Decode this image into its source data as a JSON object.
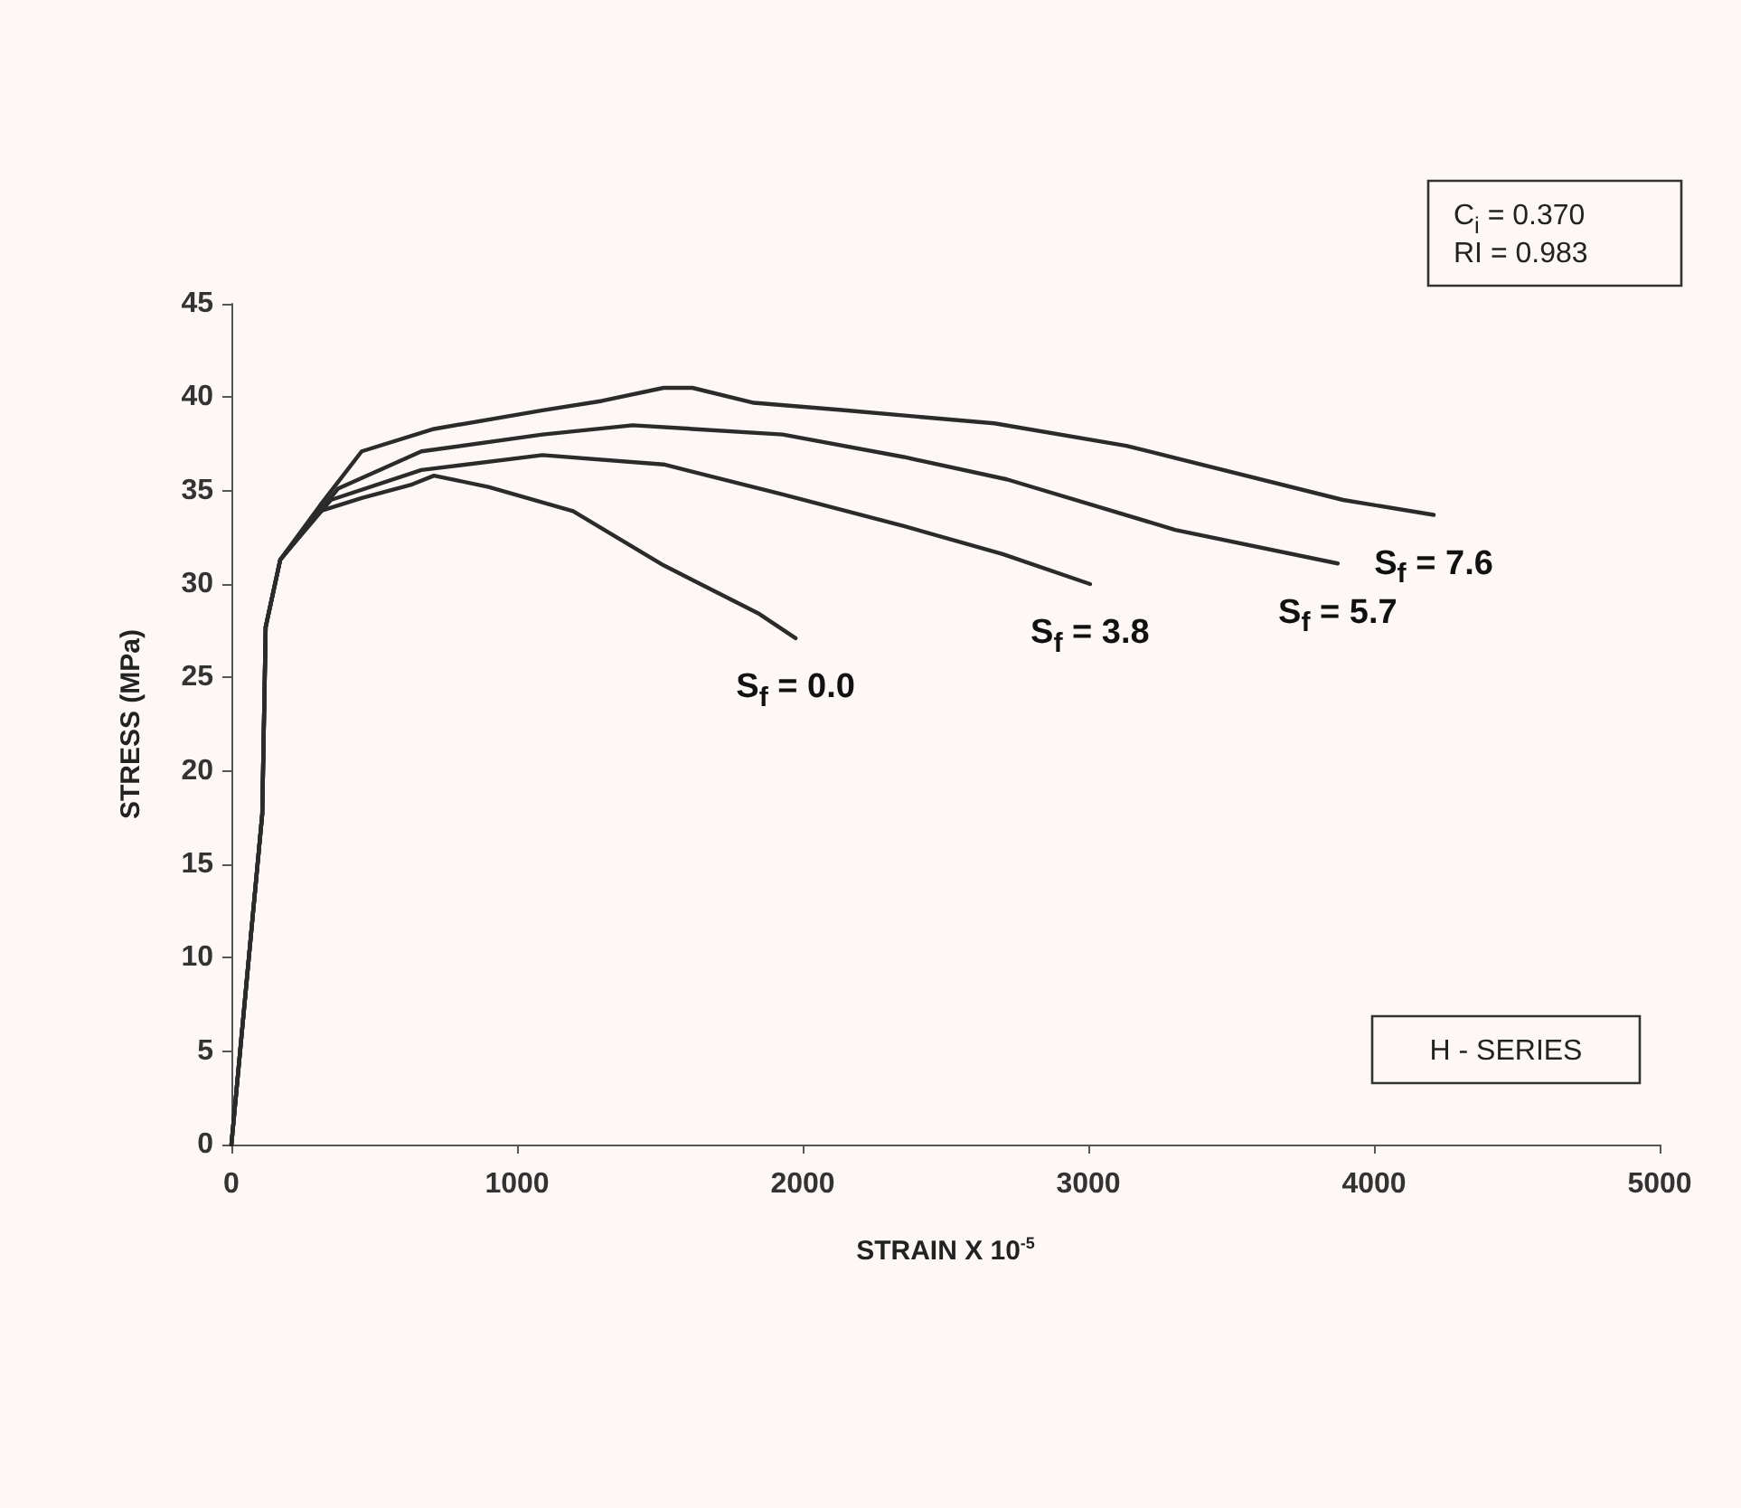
{
  "chart_data": {
    "type": "line",
    "xlabel": "STRAIN X 10$^{-5}$",
    "ylabel": "STRESS (MPa)",
    "xlim": [
      0,
      5000
    ],
    "xticks": [
      0,
      1000,
      2000,
      3000,
      4000,
      5000
    ],
    "ylim": [
      0,
      45
    ],
    "yticks": [
      0,
      5,
      10,
      15,
      20,
      25,
      30,
      35,
      40,
      45
    ],
    "grid": false,
    "marker": "none",
    "line_style": "solid",
    "series": [
      {
        "color": "#2b2b2b",
        "x": [
          0,
          108,
          120,
          171,
          310,
          456,
          627,
          709,
          900,
          1196,
          1513,
          1848,
          1975
        ],
        "values": [
          0,
          17.7,
          27.7,
          31.3,
          33.9,
          34.6,
          35.3,
          35.8,
          35.2,
          33.9,
          31,
          28.4,
          27.1
        ]
      },
      {
        "color": "#2b2b2b",
        "x": [
          0,
          108,
          120,
          171,
          348,
          665,
          1089,
          1513,
          1930,
          2354,
          2700,
          3006
        ],
        "values": [
          0,
          17.7,
          27.7,
          31.3,
          34.5,
          36.1,
          36.9,
          36.4,
          34.8,
          33.1,
          31.6,
          30.0
        ]
      },
      {
        "color": "#2b2b2b",
        "x": [
          0,
          108,
          120,
          171,
          373,
          665,
          1089,
          1405,
          1930,
          2354,
          2715,
          3304,
          3873
        ],
        "values": [
          0,
          17.7,
          27.7,
          31.3,
          35.1,
          37.1,
          38.0,
          38.5,
          38.0,
          36.8,
          35.6,
          32.9,
          31.1
        ]
      },
      {
        "color": "#2b2b2b",
        "x": [
          0,
          108,
          120,
          171,
          310,
          456,
          709,
          1089,
          1297,
          1513,
          1614,
          1829,
          2146,
          2671,
          3133,
          3892,
          4209
        ],
        "values": [
          0,
          17.7,
          27.7,
          31.3,
          34.2,
          37.1,
          38.3,
          39.3,
          39.8,
          40.5,
          40.5,
          39.7,
          39.3,
          38.6,
          37.4,
          34.5,
          33.7
        ]
      }
    ],
    "annotations": [
      {
        "text": "S$_{f}$ = 0.0",
        "x": 1975,
        "y": 27.1
      },
      {
        "text": "S$_{f}$ = 3.8",
        "x": 3006,
        "y": 30.0
      },
      {
        "text": "S$_{f}$ = 5.7",
        "x": 3873,
        "y": 31.1
      },
      {
        "text": "S$_{f}$ = 7.6",
        "x": 4209,
        "y": 33.7
      },
      "C$_{i}$ = 0.370\nRI = 0.983",
      "H - SERIES"
    ]
  }
}
